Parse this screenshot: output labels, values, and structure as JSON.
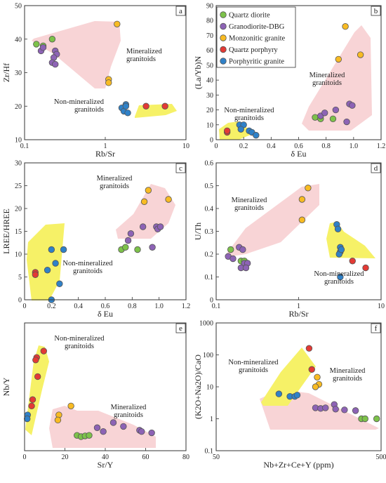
{
  "colors": {
    "quartz_diorite": "#7dc24a",
    "granodiorite_dbg": "#8d63b5",
    "monzonitic_granite": "#f8bb23",
    "quartz_porphyry": "#e33a35",
    "porphyritic_granite": "#2f81c8",
    "mineralized_fill": "#f8d4d6",
    "nonmineralized_fill": "#f6f167",
    "marker_edge": "#555555"
  },
  "legend": {
    "entries": [
      {
        "label": "Quartz diorite",
        "color": "#7dc24a"
      },
      {
        "label": "Granodiorite-DBG",
        "color": "#8d63b5"
      },
      {
        "label": "Monzonitic granite",
        "color": "#f8bb23"
      },
      {
        "label": "Quartz porphyry",
        "color": "#e33a35"
      },
      {
        "label": "Porphyritic granite",
        "color": "#2f81c8"
      }
    ]
  },
  "chart_data": [
    {
      "panel_label": "a",
      "type": "scatter",
      "xlabel": "Rb/Sr",
      "ylabel": "Zr/Hf",
      "xscale": "log",
      "xlim": [
        0.1,
        10
      ],
      "ylim": [
        10,
        50
      ],
      "xticks": [
        "0.1",
        "1",
        "10"
      ],
      "yticks": [
        "10",
        "20",
        "30",
        "40",
        "50"
      ],
      "series": [
        {
          "name": "Quartz diorite",
          "x": [
            0.14,
            0.22,
            0.17
          ],
          "y": [
            38.5,
            40,
            38
          ]
        },
        {
          "name": "Granodiorite-DBG",
          "x": [
            0.16,
            0.17,
            0.24,
            0.25,
            0.23,
            0.22,
            0.24
          ],
          "y": [
            36.5,
            37.5,
            36.5,
            35.5,
            34.5,
            33,
            32.5
          ]
        },
        {
          "name": "Monzonitic granite",
          "x": [
            1.4,
            1.1,
            1.1
          ],
          "y": [
            44.5,
            28,
            27
          ]
        },
        {
          "name": "Quartz porphyry",
          "x": [
            3.2,
            5.5
          ],
          "y": [
            20,
            20
          ]
        },
        {
          "name": "Porphyritic granite",
          "x": [
            1.6,
            1.8,
            1.7,
            1.9,
            1.8
          ],
          "y": [
            19.5,
            20.5,
            18.5,
            18,
            20
          ]
        }
      ],
      "annotations": [
        {
          "text": "Mineralized",
          "line2": "granitoids",
          "region": "mineralized"
        },
        {
          "text": "Non-mineralized",
          "line2": "granitoids",
          "region": "non-mineralized"
        }
      ]
    },
    {
      "panel_label": "b",
      "type": "scatter",
      "xlabel": "δ Eu",
      "ylabel": "(La/Yb)N",
      "xlim": [
        0,
        1.2
      ],
      "ylim": [
        0,
        90
      ],
      "xticks": [
        "0",
        "0.2",
        "0.4",
        "0.6",
        "0.8",
        "1.0",
        "1.2"
      ],
      "yticks": [
        "0",
        "10",
        "20",
        "30",
        "40",
        "50",
        "60",
        "70",
        "80",
        "90"
      ],
      "series": [
        {
          "name": "Quartz diorite",
          "x": [
            0.72,
            0.76,
            0.85
          ],
          "y": [
            15,
            14,
            14
          ]
        },
        {
          "name": "Granodiorite-DBG",
          "x": [
            0.76,
            0.79,
            0.87,
            0.95,
            0.97,
            0.99
          ],
          "y": [
            16,
            18,
            20,
            12,
            24,
            23
          ]
        },
        {
          "name": "Monzonitic granite",
          "x": [
            0.94,
            0.89,
            1.05
          ],
          "y": [
            76,
            54,
            57
          ]
        },
        {
          "name": "Quartz porphyry",
          "x": [
            0.08,
            0.08
          ],
          "y": [
            5,
            6
          ]
        },
        {
          "name": "Porphyritic granite",
          "x": [
            0.17,
            0.2,
            0.18,
            0.24,
            0.26,
            0.29
          ],
          "y": [
            10,
            10,
            7,
            6,
            5,
            3
          ]
        }
      ],
      "annotations": [
        {
          "text": "Mineralized",
          "line2": "granitoids",
          "region": "mineralized"
        },
        {
          "text": "Non-mineralized",
          "line2": "granitoids",
          "region": "non-mineralized"
        }
      ]
    },
    {
      "panel_label": "c",
      "type": "scatter",
      "xlabel": "δ Eu",
      "ylabel": "LREE/HREE",
      "xlim": [
        0,
        1.2
      ],
      "ylim": [
        0,
        30
      ],
      "xticks": [
        "0",
        "0.2",
        "0.4",
        "0.6",
        "0.8",
        "1.0",
        "1.2"
      ],
      "yticks": [
        "0",
        "5",
        "10",
        "15",
        "20",
        "25",
        "30"
      ],
      "series": [
        {
          "name": "Quartz diorite",
          "x": [
            0.72,
            0.75,
            0.84
          ],
          "y": [
            11,
            11.5,
            11
          ]
        },
        {
          "name": "Granodiorite-DBG",
          "x": [
            0.77,
            0.79,
            0.88,
            0.95,
            0.98,
            0.99,
            1.01
          ],
          "y": [
            13,
            14.5,
            16,
            11.5,
            16,
            15.5,
            16
          ]
        },
        {
          "name": "Monzonitic granite",
          "x": [
            0.92,
            0.89,
            1.07
          ],
          "y": [
            24,
            21.5,
            22
          ]
        },
        {
          "name": "Quartz porphyry",
          "x": [
            0.08,
            0.08
          ],
          "y": [
            6,
            5.5
          ]
        },
        {
          "name": "Porphyritic granite",
          "x": [
            0.2,
            0.29,
            0.17,
            0.23,
            0.26,
            0.2
          ],
          "y": [
            11,
            11,
            6.5,
            8,
            3.5,
            0
          ]
        }
      ],
      "annotations": [
        {
          "text": "Mineralized",
          "line2": "granitoids",
          "region": "mineralized"
        },
        {
          "text": "Non-mineralized",
          "line2": "granitoids",
          "region": "non-mineralized"
        }
      ]
    },
    {
      "panel_label": "d",
      "type": "scatter",
      "xlabel": "Rb/Sr",
      "ylabel": "U/Th",
      "xscale": "log",
      "xlim": [
        0.1,
        10
      ],
      "ylim": [
        0,
        0.6
      ],
      "xticks": [
        "0.1",
        "1",
        "10"
      ],
      "yticks": [
        "0",
        "0.1",
        "0.2",
        "0.3",
        "0.4",
        "0.5",
        "0.6"
      ],
      "series": [
        {
          "name": "Quartz diorite",
          "x": [
            0.15,
            0.2,
            0.22
          ],
          "y": [
            0.22,
            0.17,
            0.17
          ]
        },
        {
          "name": "Granodiorite-DBG",
          "x": [
            0.14,
            0.16,
            0.19,
            0.21,
            0.22,
            0.24,
            0.2,
            0.23
          ],
          "y": [
            0.19,
            0.18,
            0.23,
            0.22,
            0.16,
            0.16,
            0.14,
            0.14
          ]
        },
        {
          "name": "Monzonitic granite",
          "x": [
            1.3,
            1.1,
            1.1
          ],
          "y": [
            0.49,
            0.44,
            0.35
          ]
        },
        {
          "name": "Quartz porphyry",
          "x": [
            4.5,
            6.5
          ],
          "y": [
            0.17,
            0.14
          ]
        },
        {
          "name": "Porphyritic granite",
          "x": [
            2.9,
            3.0,
            3.2,
            3.2,
            3.1,
            3.3,
            3.2
          ],
          "y": [
            0.33,
            0.31,
            0.23,
            0.21,
            0.2,
            0.22,
            0.1
          ]
        }
      ],
      "annotations": [
        {
          "text": "Mineralized",
          "line2": "granitoids",
          "region": "mineralized"
        },
        {
          "text": "Non-mineralized",
          "line2": "granitoids",
          "region": "non-mineralized"
        }
      ]
    },
    {
      "panel_label": "e",
      "type": "scatter",
      "xlabel": "Sr/Y",
      "ylabel": "Nb/Y",
      "xlim": [
        0,
        80
      ],
      "ylim": [
        0,
        5
      ],
      "xticks": [
        "0",
        "20",
        "40",
        "60",
        "80"
      ],
      "yticks": [],
      "series": [
        {
          "name": "Quartz diorite",
          "x": [
            26,
            28,
            30,
            32
          ],
          "y": [
            0.6,
            0.55,
            0.58,
            0.6
          ]
        },
        {
          "name": "Granodiorite-DBG",
          "x": [
            36,
            39,
            44,
            49,
            57,
            58,
            63
          ],
          "y": [
            0.9,
            0.75,
            1.1,
            0.95,
            0.8,
            0.75,
            0.7
          ]
        },
        {
          "name": "Monzonitic granite",
          "x": [
            23,
            17,
            16.5
          ],
          "y": [
            1.75,
            1.4,
            1.2
          ]
        },
        {
          "name": "Quartz porphyry",
          "x": [
            9.5,
            6,
            5.5,
            6.5,
            4,
            3.5
          ],
          "y": [
            3.9,
            3.65,
            3.55,
            2.9,
            2,
            1.75
          ]
        },
        {
          "name": "Porphyritic granite",
          "x": [
            1.5,
            1.3
          ],
          "y": [
            1.4,
            1.25
          ]
        }
      ],
      "annotations": [
        {
          "text": "Non-mineralized",
          "line2": "granitoids",
          "region": "non-mineralized"
        },
        {
          "text": "Mineralized",
          "line2": "granitoids",
          "region": "mineralized"
        }
      ]
    },
    {
      "panel_label": "f",
      "type": "scatter",
      "xlabel": "Nb+Zr+Ce+Y (ppm)",
      "ylabel": "(K2O+Na2O)/CaO",
      "xscale": "log",
      "yscale": "log",
      "xlim": [
        50,
        500
      ],
      "ylim": [
        0.1,
        1000
      ],
      "xticks": [
        "50",
        "500"
      ],
      "yticks": [
        "0.1",
        "1",
        "10",
        "100",
        "1000"
      ],
      "series": [
        {
          "name": "Quartz diorite",
          "x": [
            380,
            400,
            470
          ],
          "y": [
            1.0,
            1.0,
            1.0
          ]
        },
        {
          "name": "Granodiorite-DBG",
          "x": [
            200,
            215,
            230,
            260,
            265,
            300,
            350
          ],
          "y": [
            2.2,
            2.1,
            2.2,
            2.8,
            2.0,
            1.9,
            1.8
          ]
        },
        {
          "name": "Monzonitic granite",
          "x": [
            205,
            210,
            200
          ],
          "y": [
            20,
            12,
            10
          ]
        },
        {
          "name": "Quartz porphyry",
          "x": [
            183,
            190
          ],
          "y": [
            160,
            35
          ]
        },
        {
          "name": "Porphyritic granite",
          "x": [
            120,
            140,
            150,
            155
          ],
          "y": [
            6,
            5,
            5,
            5.5
          ]
        }
      ],
      "annotations": [
        {
          "text": "Non-mineralized",
          "line2": "granitoids",
          "region": "non-mineralized"
        },
        {
          "text": "Mineralized",
          "line2": "granitoids",
          "region": "mineralized"
        }
      ]
    }
  ]
}
